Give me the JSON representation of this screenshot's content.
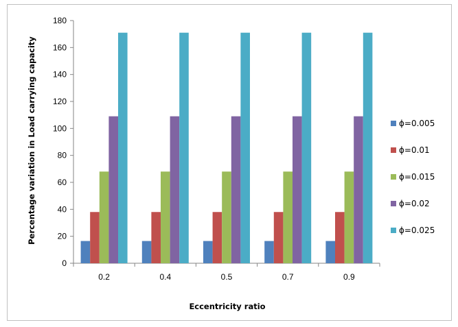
{
  "chart_data": {
    "type": "bar",
    "title": "",
    "xlabel": "Eccentricity ratio",
    "ylabel": "Percentage variation in Load carrying capacity",
    "categories": [
      "0.2",
      "0.4",
      "0.5",
      "0.7",
      "0.9"
    ],
    "ylim": [
      0,
      180
    ],
    "yticks": [
      0,
      20,
      40,
      60,
      80,
      100,
      120,
      140,
      160,
      180
    ],
    "grid": false,
    "legend_position": "right",
    "series": [
      {
        "name": "ϕ=0.005",
        "color": "#4F81BD",
        "values": [
          16.5,
          16.5,
          16.5,
          16.5,
          16.5
        ]
      },
      {
        "name": "ϕ=0.01",
        "color": "#C0504D",
        "values": [
          38,
          38,
          38,
          38,
          38
        ]
      },
      {
        "name": "ϕ=0.015",
        "color": "#9BBB59",
        "values": [
          68,
          68,
          68,
          68,
          68
        ]
      },
      {
        "name": "ϕ=0.02",
        "color": "#8064A2",
        "values": [
          109,
          109,
          109,
          109,
          109
        ]
      },
      {
        "name": "ϕ=0.025",
        "color": "#4BACC6",
        "values": [
          171,
          171,
          171,
          171,
          171
        ]
      }
    ]
  }
}
